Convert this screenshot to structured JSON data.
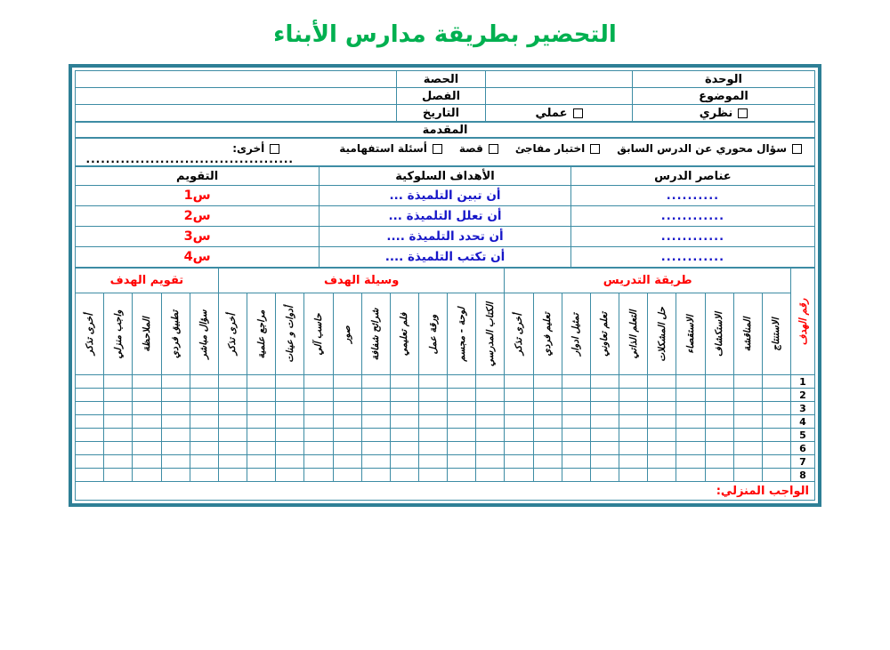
{
  "title": "التحضير بطريقة مدارس الأبناء",
  "info": {
    "unit_label": "الوحدة",
    "topic_label": "الموضوع",
    "period_label": "الحصة",
    "class_label": "الفصل",
    "date_label": "التاريخ",
    "theory_label": "نظري",
    "practical_label": "عملي"
  },
  "intro": {
    "title": "المقدمة",
    "options": [
      "سؤال محوري عن الدرس السابق",
      "اختبار مفاجئ",
      "قصة",
      "أسئلة استفهامية",
      "أخرى:"
    ],
    "other_dots": "..................................................."
  },
  "objectives": {
    "headers": [
      "عناصر الدرس",
      "الأهداف السلوكية",
      "التقويم"
    ],
    "rows": [
      {
        "element": "..........",
        "objective": "أن تبين التلميذة ...",
        "evaluation": "س1"
      },
      {
        "element": "............",
        "objective": "أن تعلل التلميذة ...",
        "evaluation": "س2"
      },
      {
        "element": "............",
        "objective": "أن تحدد التلميذة ....",
        "evaluation": "س3"
      },
      {
        "element": "............",
        "objective": "أن تكتب التلميذة ....",
        "evaluation": "س4"
      }
    ]
  },
  "grid": {
    "goal_number_label": "رقم الهدف",
    "sections": [
      {
        "label": "طريقة التدريس",
        "columns": [
          "الاستنتاج",
          "المناقشة",
          "الاستكشاف",
          "الاستقصاء",
          "حل المشكلات",
          "التعلم الذاتي",
          "تعلم تعاوني",
          "تمثيل ادوار",
          "تعليم فردي",
          "أخرى تذكر"
        ]
      },
      {
        "label": "وسيلة الهدف",
        "columns": [
          "الكتاب المدرسي",
          "لوحة - مجسم",
          "ورقة عمل",
          "فلم تعليمي",
          "شرائح شفافة",
          "صور",
          "حاسب آلي",
          "أدوات و عينات",
          "مراجع علمية",
          "أخرى تذكر"
        ]
      },
      {
        "label": "تقويم الهدف",
        "columns": [
          "سؤال مباشر",
          "تطبيق فردي",
          "الملاحظة",
          "واجب منزلي",
          "أخرى تذكر"
        ]
      }
    ],
    "row_numbers": [
      "1",
      "2",
      "3",
      "4",
      "5",
      "6",
      "7",
      "8"
    ],
    "homework_label": "الواجب المنزلي:"
  },
  "colors": {
    "title-green": "#00B050",
    "accent-red": "#FF0000",
    "text-blue": "#1616C8",
    "border-teal": "#2E7F96",
    "grid-line": "#3D8CA4"
  }
}
